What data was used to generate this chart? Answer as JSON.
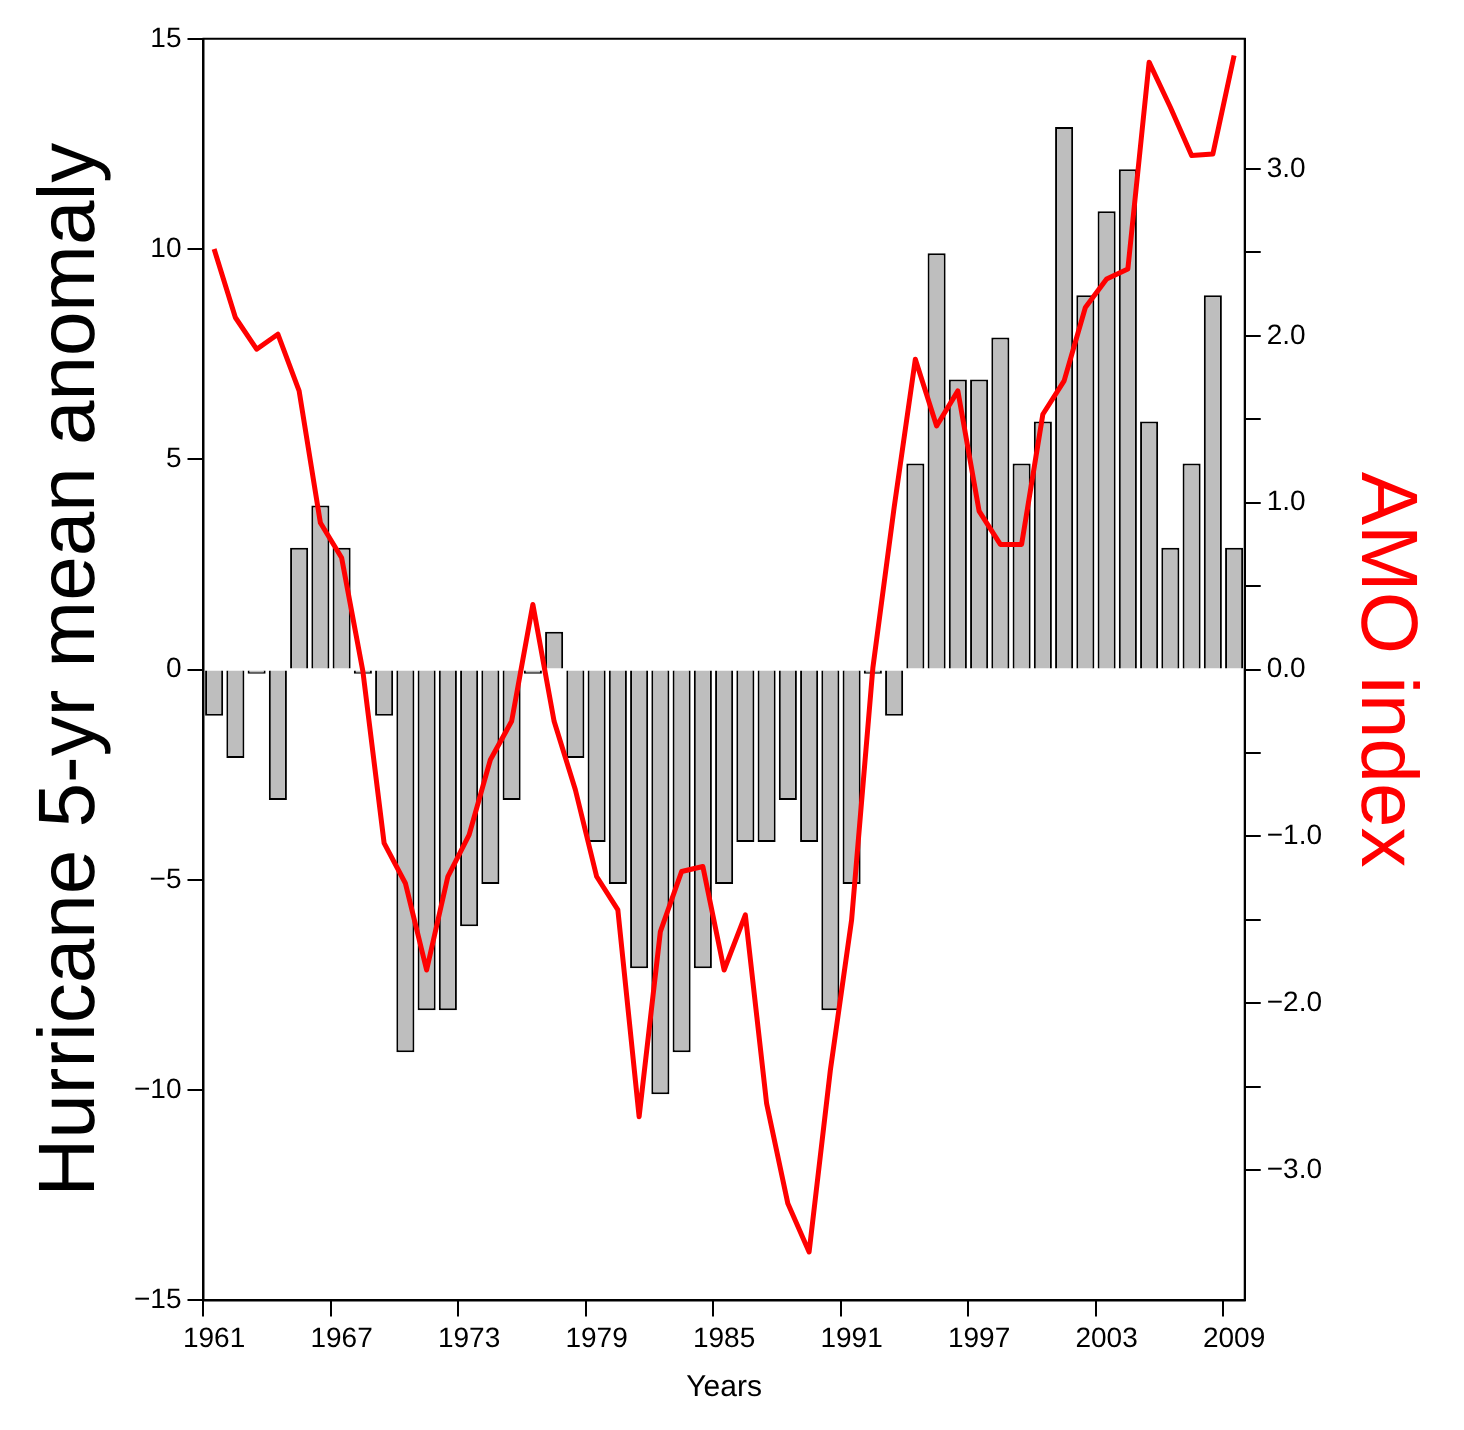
{
  "chart_data": {
    "type": "bar",
    "xlabel": "Years",
    "ylabel": "Hurricane 5-yr mean anomaly",
    "y2label": "AMO index",
    "categories": [
      "1961",
      null,
      null,
      null,
      null,
      null,
      "1967",
      null,
      null,
      null,
      null,
      null,
      "1973",
      null,
      null,
      null,
      null,
      null,
      "1979",
      null,
      null,
      null,
      null,
      null,
      "1985",
      null,
      null,
      null,
      null,
      null,
      "1991",
      null,
      null,
      null,
      null,
      null,
      "1997",
      null,
      null,
      null,
      null,
      null,
      "2003",
      null,
      null,
      null,
      null,
      null,
      "2009"
    ],
    "series": [
      {
        "color": "#bebebe",
        "values": [
          -1.1,
          -2.1,
          -0.1,
          -3.1,
          2.9,
          3.9,
          2.9,
          -0.1,
          -1.1,
          -9.1,
          -8.1,
          -8.1,
          -6.1,
          -5.1,
          -3.1,
          -0.1,
          0.9,
          -2.1,
          -4.1,
          -5.1,
          -7.1,
          -10.1,
          -9.1,
          -7.1,
          -5.1,
          -4.1,
          -4.1,
          -3.1,
          -4.1,
          -8.1,
          -5.1,
          -0.1,
          -1.1,
          4.9,
          9.9,
          6.9,
          6.9,
          7.9,
          4.9,
          5.9,
          12.9,
          8.9,
          10.9,
          11.9,
          5.9,
          2.9,
          4.9,
          8.9,
          2.9
        ]
      },
      {
        "type": "line",
        "axis": "y2",
        "color": "#ff0000",
        "values": [
          2.52,
          2.11,
          1.92,
          2.01,
          1.67,
          0.88,
          0.67,
          -0.01,
          -1.04,
          -1.28,
          -1.8,
          -1.24,
          -0.99,
          -0.54,
          -0.31,
          0.39,
          -0.31,
          -0.72,
          -1.24,
          -1.44,
          -2.68,
          -1.57,
          -1.21,
          -1.18,
          -1.8,
          -1.47,
          -2.6,
          -3.2,
          -3.49,
          -2.4,
          -1.5,
          0.01,
          0.97,
          1.86,
          1.46,
          1.67,
          0.95,
          0.75,
          0.75,
          1.53,
          1.73,
          2.17,
          2.34,
          2.4,
          3.64,
          3.37,
          3.08,
          3.09,
          3.68
        ]
      }
    ],
    "ylim": [
      -15,
      15
    ],
    "yticks": [
      -15,
      -10,
      -5,
      0,
      5,
      10,
      15
    ],
    "y2lim": [
      -3.78,
      3.78
    ],
    "y2ticks": [
      {
        "value": -3,
        "label": "−3.0"
      },
      {
        "value": -2.5,
        "label": null
      },
      {
        "value": -2,
        "label": "−2.0"
      },
      {
        "value": -1.5,
        "label": null
      },
      {
        "value": -1,
        "label": "−1.0"
      },
      {
        "value": -0.5,
        "label": null
      },
      {
        "value": 0,
        "label": "0.0"
      },
      {
        "value": 0.5,
        "label": null
      },
      {
        "value": 1,
        "label": "1.0"
      },
      {
        "value": 1.5,
        "label": null
      },
      {
        "value": 2,
        "label": "2.0"
      },
      {
        "value": 2.5,
        "label": null
      },
      {
        "value": 3,
        "label": "3.0"
      }
    ]
  }
}
